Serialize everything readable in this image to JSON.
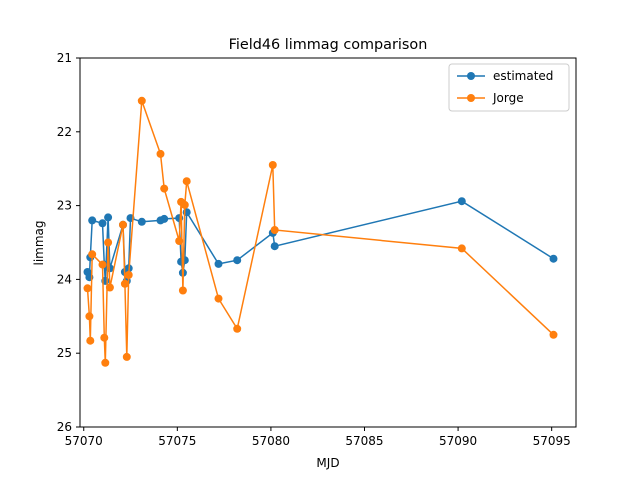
{
  "chart_data": {
    "type": "line",
    "title": "Field46 limmag comparison",
    "xlabel": "MJD",
    "ylabel": "limmag",
    "xlim": [
      57069.8,
      57096.3
    ],
    "ylim": [
      26,
      21
    ],
    "y_inverted": true,
    "xticks": [
      "57070",
      "57075",
      "57080",
      "57085",
      "57090",
      "57095"
    ],
    "xtick_values": [
      57070,
      57075,
      57080,
      57085,
      57090,
      57095
    ],
    "yticks": [
      "21",
      "22",
      "23",
      "24",
      "25",
      "26"
    ],
    "ytick_values": [
      21,
      22,
      23,
      24,
      25,
      26
    ],
    "grid": false,
    "legend_position": "top-right",
    "marker": "circle",
    "series": [
      {
        "name": "estimated",
        "color": "#1f77b4",
        "points": [
          [
            57070.2,
            23.9
          ],
          [
            57070.3,
            23.97
          ],
          [
            57070.35,
            23.7
          ],
          [
            57070.45,
            23.2
          ],
          [
            57071.0,
            23.24
          ],
          [
            57071.1,
            23.8
          ],
          [
            57071.15,
            24.02
          ],
          [
            57071.3,
            23.16
          ],
          [
            57071.4,
            23.85
          ],
          [
            57072.1,
            23.26
          ],
          [
            57072.2,
            23.9
          ],
          [
            57072.3,
            24.02
          ],
          [
            57072.4,
            23.85
          ],
          [
            57072.5,
            23.17
          ],
          [
            57073.1,
            23.22
          ],
          [
            57074.1,
            23.2
          ],
          [
            57074.3,
            23.18
          ],
          [
            57075.1,
            23.17
          ],
          [
            57075.2,
            23.76
          ],
          [
            57075.3,
            23.91
          ],
          [
            57075.4,
            23.74
          ],
          [
            57075.5,
            23.09
          ],
          [
            57077.2,
            23.79
          ],
          [
            57078.2,
            23.74
          ],
          [
            57080.1,
            23.37
          ],
          [
            57080.2,
            23.55
          ],
          [
            57090.2,
            22.94
          ],
          [
            57095.1,
            23.72
          ]
        ]
      },
      {
        "name": "Jorge",
        "color": "#ff7f0e",
        "points": [
          [
            57070.2,
            24.12
          ],
          [
            57070.3,
            24.5
          ],
          [
            57070.35,
            24.83
          ],
          [
            57070.45,
            23.66
          ],
          [
            57071.0,
            23.8
          ],
          [
            57071.1,
            24.79
          ],
          [
            57071.15,
            25.13
          ],
          [
            57071.3,
            23.5
          ],
          [
            57071.4,
            24.11
          ],
          [
            57072.1,
            23.26
          ],
          [
            57072.2,
            24.06
          ],
          [
            57072.3,
            25.05
          ],
          [
            57072.4,
            23.94
          ],
          [
            57073.1,
            21.58
          ],
          [
            57074.1,
            22.3
          ],
          [
            57074.3,
            22.77
          ],
          [
            57075.1,
            23.48
          ],
          [
            57075.2,
            22.95
          ],
          [
            57075.3,
            24.15
          ],
          [
            57075.4,
            22.99
          ],
          [
            57075.5,
            22.67
          ],
          [
            57077.2,
            24.26
          ],
          [
            57078.2,
            24.67
          ],
          [
            57080.1,
            22.45
          ],
          [
            57080.2,
            23.33
          ],
          [
            57090.2,
            23.58
          ],
          [
            57095.1,
            24.75
          ]
        ]
      }
    ]
  }
}
